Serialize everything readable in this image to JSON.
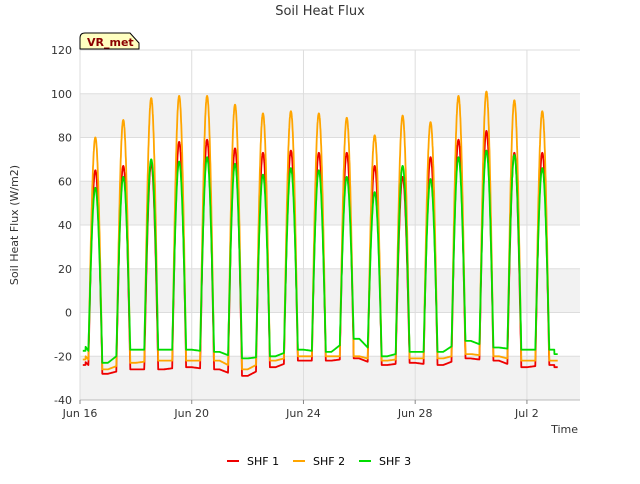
{
  "chart_data": {
    "type": "line",
    "title": "Soil Heat Flux",
    "xlabel": "Time",
    "ylabel": "Soil Heat Flux (W/m2)",
    "site_badge": "VR_met",
    "xlim": [
      0,
      17.9
    ],
    "ylim": [
      -40,
      120
    ],
    "yticks": [
      -40,
      -20,
      0,
      20,
      40,
      60,
      80,
      100,
      120
    ],
    "xticks": [
      {
        "day": 0,
        "label": "Jun 16"
      },
      {
        "day": 4,
        "label": "Jun 20"
      },
      {
        "day": 8,
        "label": "Jun 24"
      },
      {
        "day": 12,
        "label": "Jun 28"
      },
      {
        "day": 16,
        "label": "Jul 2"
      }
    ],
    "legend_position": "bottom-center",
    "grid": true,
    "days": [
      0.5,
      1.5,
      2.5,
      3.5,
      4.5,
      5.5,
      6.5,
      7.5,
      8.5,
      9.5,
      10.5,
      11.5,
      12.5,
      13.5,
      14.5,
      15.5,
      16.5
    ],
    "series": [
      {
        "name": "SHF 1",
        "color": "#ee0000",
        "start": -20,
        "end": -25,
        "daily_peaks": [
          65,
          67,
          68,
          78,
          79,
          75,
          73,
          74,
          73,
          73,
          67,
          62,
          71,
          79,
          83,
          73,
          73
        ],
        "daily_mins": [
          -28,
          -26,
          -26,
          -25,
          -26,
          -29,
          -25,
          -22,
          -22,
          -21,
          -24,
          -23,
          -24,
          -21,
          -22,
          -25,
          -24
        ]
      },
      {
        "name": "SHF 2",
        "color": "#ffa500",
        "start": -17,
        "end": -22,
        "daily_peaks": [
          80,
          88,
          98,
          99,
          99,
          95,
          91,
          92,
          91,
          89,
          81,
          90,
          87,
          99,
          101,
          97,
          92
        ],
        "daily_mins": [
          -26,
          -23,
          -22,
          -22,
          -22,
          -26,
          -22,
          -20,
          -20,
          -20,
          -22,
          -21,
          -21,
          -19,
          -20,
          -22,
          -22
        ]
      },
      {
        "name": "SHF 3",
        "color": "#00dd00",
        "start": -12,
        "end": -19,
        "daily_peaks": [
          57,
          62,
          70,
          69,
          71,
          68,
          63,
          66,
          65,
          62,
          55,
          67,
          61,
          71,
          74,
          72,
          66
        ],
        "daily_mins": [
          -23,
          -17,
          -17,
          -17,
          -18,
          -21,
          -20,
          -17,
          -18,
          -12,
          -20,
          -18,
          -18,
          -13,
          -16,
          -17,
          -17
        ]
      }
    ]
  }
}
